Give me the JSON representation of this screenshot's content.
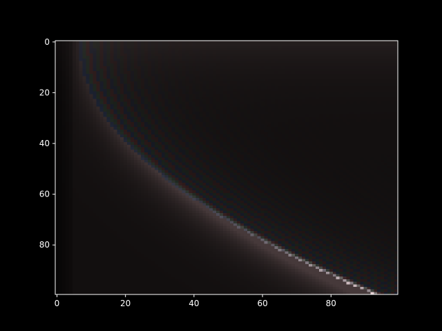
{
  "chart_data": {
    "type": "heatmap",
    "title": "",
    "xlabel": "",
    "ylabel": "",
    "xlim": [
      -0.5,
      99.5
    ],
    "ylim": [
      99.5,
      -0.5
    ],
    "x_ticks": [
      0,
      20,
      40,
      60,
      80
    ],
    "y_ticks": [
      0,
      20,
      40,
      60,
      80
    ],
    "x_tick_labels": [
      "0",
      "20",
      "40",
      "60",
      "80"
    ],
    "y_tick_labels": [
      "0",
      "20",
      "40",
      "60",
      "80"
    ],
    "grid": false,
    "legend": "none",
    "colors": {
      "figure_background": "#000000",
      "axes_spine": "#ffffff",
      "text": "#ffffff",
      "base": "#120f0f",
      "glow": "#46393a",
      "bright_core": "#f4dde0",
      "ring_blue": "#1a2a48",
      "ring_green": "#233a2a",
      "ring_red": "#4a2424"
    }
  }
}
